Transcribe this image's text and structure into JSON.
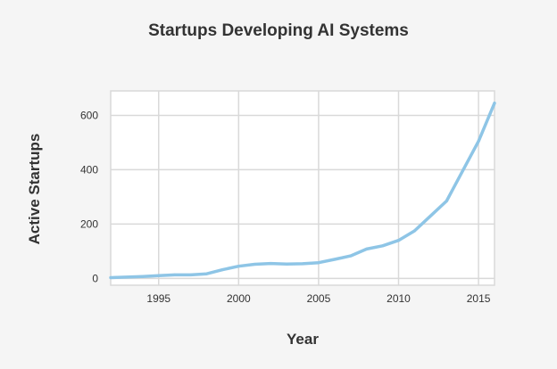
{
  "chart_data": {
    "type": "line",
    "title": "Startups Developing AI Systems",
    "xlabel": "Year",
    "ylabel": "Active Startups",
    "xlim": [
      1992,
      2016
    ],
    "ylim": [
      -25,
      690
    ],
    "x_ticks": [
      1995,
      2000,
      2005,
      2010,
      2015
    ],
    "y_ticks": [
      0,
      200,
      400,
      600
    ],
    "grid": true,
    "legend": "none",
    "series": [
      {
        "color": "#8ec5e6",
        "x": [
          1992,
          1993,
          1994,
          1995,
          1996,
          1997,
          1998,
          1999,
          2000,
          2001,
          2002,
          2003,
          2004,
          2005,
          2006,
          2007,
          2008,
          2009,
          2010,
          2011,
          2012,
          2013,
          2014,
          2015,
          2016
        ],
        "y": [
          3,
          5,
          7,
          10,
          13,
          13,
          17,
          32,
          45,
          52,
          55,
          53,
          54,
          58,
          70,
          83,
          108,
          120,
          140,
          175,
          230,
          285,
          395,
          505,
          645
        ]
      }
    ]
  },
  "colors": {
    "background": "#f5f5f5",
    "plot_background": "#ffffff",
    "grid": "#d9d9d9",
    "line": "#8ec5e6",
    "text": "#333333"
  }
}
